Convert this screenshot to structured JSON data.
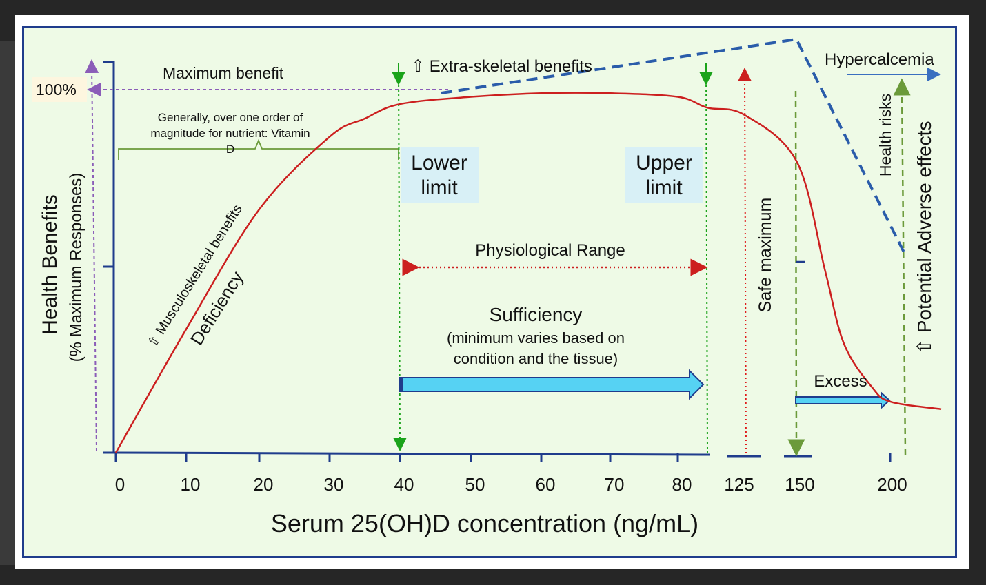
{
  "chart_data": {
    "type": "line",
    "title": "",
    "xlabel": "Serum 25(OH)D concentration (ng/mL)",
    "ylabel": "Health Benefits",
    "ylabel_sub": "(% Maximum Responses)",
    "x_ticks": [
      "0",
      "10",
      "20",
      "30",
      "40",
      "50",
      "60",
      "70",
      "80",
      "125",
      "150",
      "200"
    ],
    "y_top_label": "100%",
    "series": [
      {
        "points": [
          [
            0,
            0
          ],
          [
            10,
            34
          ],
          [
            20,
            67
          ],
          [
            30,
            87
          ],
          [
            35,
            92
          ],
          [
            40,
            96
          ],
          [
            50,
            98
          ],
          [
            60,
            99
          ],
          [
            70,
            99
          ],
          [
            80,
            98
          ],
          [
            85,
            95
          ],
          [
            125,
            93
          ],
          [
            150,
            80
          ],
          [
            165,
            50
          ],
          [
            175,
            30
          ],
          [
            190,
            18
          ],
          [
            200,
            14
          ],
          [
            215,
            12
          ]
        ]
      }
    ],
    "colors": {
      "curve": "#cc1f1f",
      "axis": "#1f3c8c",
      "dashed_blue": "#2a5caa",
      "arrow_fill": "#56d2f3",
      "green": "#1aa31a",
      "olive": "#6b9a3a",
      "purple": "#8b5db8",
      "red_dot": "#e01a1a",
      "label_box": "#d8f0f6",
      "frame": "#1f3c8c"
    }
  },
  "annotations": {
    "max_benefit": "Maximum benefit",
    "order_note_line1": "Generally, over one order of",
    "order_note_line2": "magnitude for nutrient: Vitamin",
    "order_note_line3": "D",
    "extra_skeletal": "⇧ Extra-skeletal benefits",
    "hypercalcemia": "Hypercalcemia",
    "health_risks": "Health risks",
    "potential_adverse": "⇧ Potential  Adverse effects",
    "lower_limit_1": "Lower",
    "lower_limit_2": "limit",
    "upper_limit_1": "Upper",
    "upper_limit_2": "limit",
    "physiological_range": "Physiological Range",
    "sufficiency": "Sufficiency",
    "sufficiency_note_1": "(minimum varies based on",
    "sufficiency_note_2": "condition and the tissue)",
    "safe_maximum": "Safe maximum",
    "excess": "Excess",
    "musculoskeletal": "⇧ Musculoskeletal benefits",
    "deficiency": "Deficiency"
  }
}
